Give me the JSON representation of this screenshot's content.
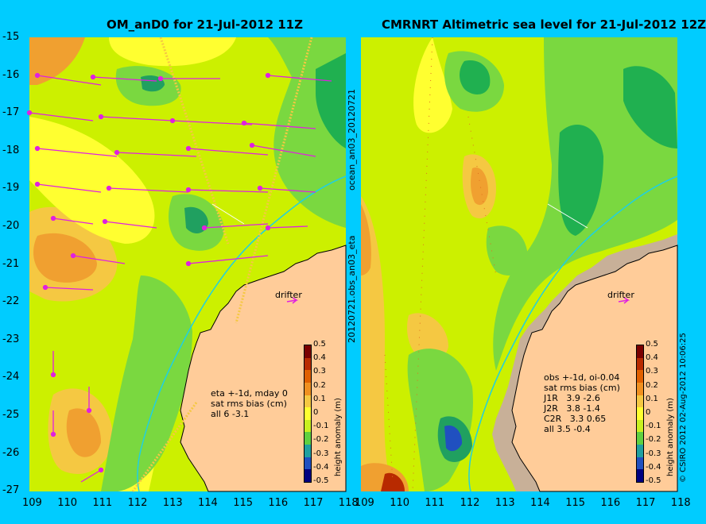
{
  "left": {
    "title": "OM_anD0 for 21-Jul-2012 11Z",
    "side_label": "ocean_an03_20120721",
    "drifter_label": "drifter",
    "note_lines": [
      "eta +-1d, mday 0",
      "sat rms bias (cm)",
      "all 6 -3.1"
    ]
  },
  "right": {
    "title": "CMRNRT Altimetric sea level  for 21-Jul-2012 12Z",
    "side_label": "20120721.obs_an03_eta",
    "drifter_label": "drifter",
    "note_lines": [
      "obs +-1d, oi-0.04",
      "sat rms bias (cm)",
      "J1R   3.9 -2.6",
      "J2R   3.8 -1.4",
      "C2R   3.3 0.65",
      "all 3.5 -0.4"
    ]
  },
  "axes": {
    "x_ticks": [
      "109",
      "110",
      "111",
      "112",
      "113",
      "114",
      "115",
      "116",
      "117",
      "118"
    ],
    "y_ticks": [
      "-15",
      "-16",
      "-17",
      "-18",
      "-19",
      "-20",
      "-21",
      "-22",
      "-23",
      "-24",
      "-25",
      "-26",
      "-27"
    ]
  },
  "colorbar": {
    "label": "height anomaly (m)",
    "ticks": [
      "0.5",
      "0.4",
      "0.3",
      "0.2",
      "0.1",
      "0",
      "-0.1",
      "-0.2",
      "-0.3",
      "-0.4",
      "-0.5"
    ],
    "colors": [
      "#7a0000",
      "#b82a00",
      "#e06000",
      "#f09020",
      "#f5c842",
      "#ffff30",
      "#c8f020",
      "#5fd040",
      "#20a0a0",
      "#2050c0",
      "#000080"
    ]
  },
  "copyright": "© CSIRO 2012   02-Aug-2012 10:06:25"
}
